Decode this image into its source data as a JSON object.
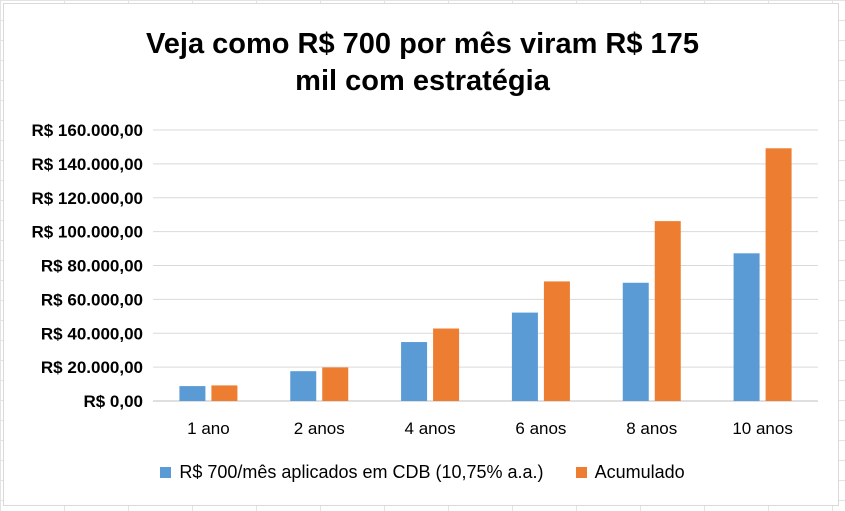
{
  "chart_data": {
    "type": "bar",
    "title": [
      "Veja como R$ 700 por mês viram R$ 175",
      "mil com estratégia"
    ],
    "categories": [
      "1 ano",
      "2 anos",
      "4 anos",
      "6 anos",
      "8 anos",
      "10 anos"
    ],
    "series": [
      {
        "name": "R$ 700/mês aplicados em CDB (10,75% a.a.)",
        "color": "#5B9BD5",
        "values": [
          8800,
          17600,
          34800,
          52200,
          69800,
          87200
        ]
      },
      {
        "name": "Acumulado",
        "color": "#ED7D31",
        "values": [
          9200,
          19800,
          42800,
          70600,
          106200,
          149200
        ]
      }
    ],
    "ylim": [
      0,
      160000
    ],
    "yticks": [
      "R$ 0,00",
      "R$ 20.000,00",
      "R$ 40.000,00",
      "R$ 60.000,00",
      "R$ 80.000,00",
      "R$ 100.000,00",
      "R$ 120.000,00",
      "R$ 140.000,00",
      "R$ 160.000,00"
    ],
    "ytick_values": [
      0,
      20000,
      40000,
      60000,
      80000,
      100000,
      120000,
      140000,
      160000
    ],
    "grid": true,
    "legend": "bottom"
  }
}
